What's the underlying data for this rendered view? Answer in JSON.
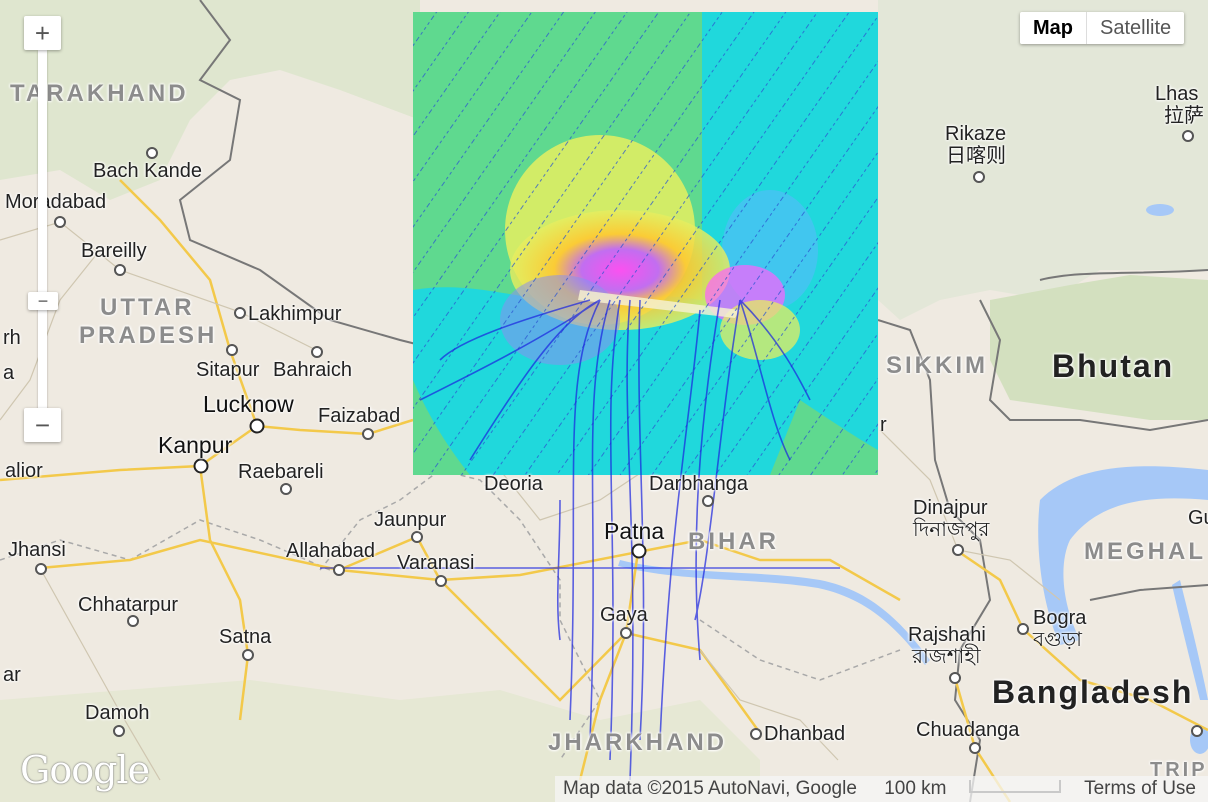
{
  "controls": {
    "zoom_in": "+",
    "zoom_out": "−",
    "zoom_out_alt": "−"
  },
  "maptype": {
    "map_label": "Map",
    "satellite_label": "Satellite"
  },
  "places": {
    "tarakhand": "TARAKHAND",
    "bach_kande": "Bach Kande",
    "moradabad": "Moradabad",
    "bareilly": "Bareilly",
    "uttar": "UTTAR",
    "pradesh": "PRADESH",
    "lakhimpur": "Lakhimpur",
    "rh": "rh",
    "a": "a",
    "sitapur": "Sitapur",
    "bahraich": "Bahraich",
    "lucknow": "Lucknow",
    "faizabad": "Faizabad",
    "kanpur": "Kanpur",
    "alior": "alior",
    "raebareli": "Raebareli",
    "deoria": "Deoria",
    "darbhanga": "Darbhanga",
    "jaunpur": "Jaunpur",
    "patna": "Patna",
    "bihar": "BIHAR",
    "jhansi": "Jhansi",
    "allahabad": "Allahabad",
    "varanasi": "Varanasi",
    "chhatarpur": "Chhatarpur",
    "gaya": "Gaya",
    "satna": "Satna",
    "ar": "ar",
    "damoh": "Damoh",
    "jharkhand": "JHARKHAND",
    "dhanbad": "Dhanbad",
    "lhasa": "Lhas",
    "lhasa_cn": "拉萨",
    "rikaze": "Rikaze",
    "rikaze_cn": "日喀则",
    "sikkim": "SIKKIM",
    "bhutan": "Bhutan",
    "r_edge": "r",
    "dinajpur": "Dinajpur",
    "dinajpur_bn": "দিনাজপুর",
    "gu": "Gu",
    "meghal": "MEGHAL",
    "bogra": "Bogra",
    "bogra_bn": "বগুড়া",
    "rajshahi": "Rajshahi",
    "rajshahi_bn": "রাজশাহী",
    "bangladesh": "Bangladesh",
    "chuadanga": "Chuadanga",
    "tripura": "TRIP"
  },
  "footer": {
    "attribution": "Map data ©2015 AutoNavi, Google",
    "scale": "100 km",
    "terms": "Terms of Use"
  },
  "logo": "Google",
  "colors": {
    "overlay_green": "#5fd98f",
    "overlay_cyan": "#20d8dc",
    "field_lines": "#1a24e0",
    "water": "#a6c8f7",
    "roads": "#f3c94a"
  }
}
